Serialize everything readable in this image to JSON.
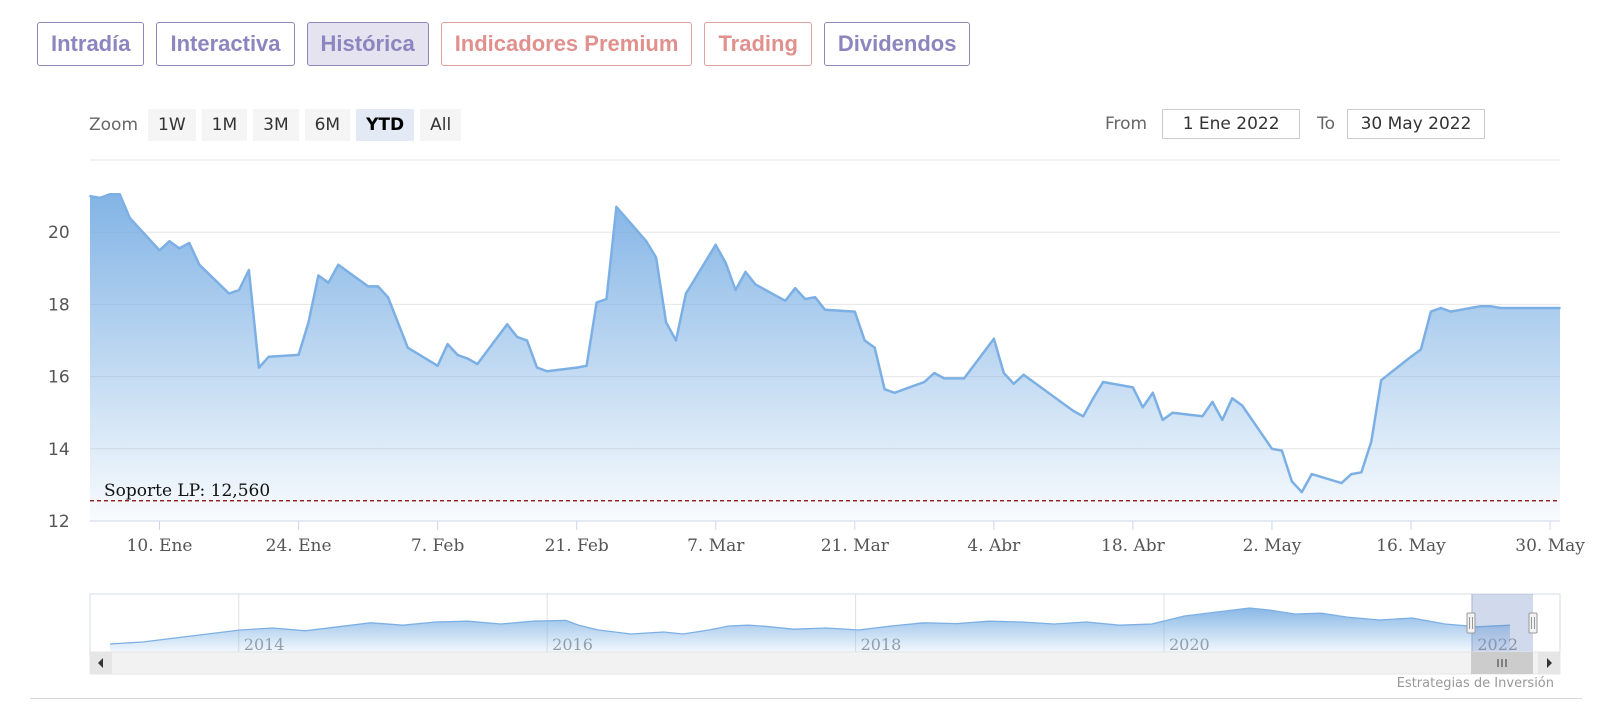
{
  "tabs": [
    {
      "label": "Intradía",
      "color": "#8c85bf"
    },
    {
      "label": "Interactiva",
      "color": "#8c85bf"
    },
    {
      "label": "Histórica",
      "color": "#8c85bf",
      "active": true
    },
    {
      "label": "Indicadores Premium",
      "color": "#e0918e"
    },
    {
      "label": "Trading",
      "color": "#e0918e"
    },
    {
      "label": "Dividendos",
      "color": "#8c85bf"
    }
  ],
  "zoom": {
    "label": "Zoom",
    "buttons": [
      "1W",
      "1M",
      "3M",
      "6M",
      "YTD",
      "All"
    ],
    "selected": "YTD"
  },
  "range": {
    "from_label": "From",
    "from_value": "1 Ene 2022",
    "to_label": "To",
    "to_value": "30 May 2022"
  },
  "credit": "Estrategias de Inversión",
  "chart_data": {
    "type": "area",
    "ylim": [
      12,
      22
    ],
    "yticks": [
      12,
      14,
      16,
      18,
      20
    ],
    "x_range": [
      "2022-01-03",
      "2022-05-31"
    ],
    "xticks": [
      {
        "date": "2022-01-10",
        "label": "10. Ene"
      },
      {
        "date": "2022-01-24",
        "label": "24. Ene"
      },
      {
        "date": "2022-02-07",
        "label": "7. Feb"
      },
      {
        "date": "2022-02-21",
        "label": "21. Feb"
      },
      {
        "date": "2022-03-07",
        "label": "7. Mar"
      },
      {
        "date": "2022-03-21",
        "label": "21. Mar"
      },
      {
        "date": "2022-04-04",
        "label": "4. Abr"
      },
      {
        "date": "2022-04-18",
        "label": "18. Abr"
      },
      {
        "date": "2022-05-02",
        "label": "2. May"
      },
      {
        "date": "2022-05-16",
        "label": "16. May"
      },
      {
        "date": "2022-05-30",
        "label": "30. May"
      }
    ],
    "series": [
      {
        "points": [
          [
            "2022-01-03",
            21.0
          ],
          [
            "2022-01-04",
            20.95
          ],
          [
            "2022-01-05",
            21.05
          ],
          [
            "2022-01-06",
            21.05
          ],
          [
            "2022-01-07",
            20.4
          ],
          [
            "2022-01-10",
            19.5
          ],
          [
            "2022-01-11",
            19.75
          ],
          [
            "2022-01-12",
            19.55
          ],
          [
            "2022-01-13",
            19.7
          ],
          [
            "2022-01-14",
            19.1
          ],
          [
            "2022-01-17",
            18.3
          ],
          [
            "2022-01-18",
            18.4
          ],
          [
            "2022-01-19",
            18.95
          ],
          [
            "2022-01-20",
            16.25
          ],
          [
            "2022-01-21",
            16.55
          ],
          [
            "2022-01-24",
            16.6
          ],
          [
            "2022-01-25",
            17.5
          ],
          [
            "2022-01-26",
            18.8
          ],
          [
            "2022-01-27",
            18.6
          ],
          [
            "2022-01-28",
            19.1
          ],
          [
            "2022-01-31",
            18.5
          ],
          [
            "2022-02-01",
            18.5
          ],
          [
            "2022-02-02",
            18.2
          ],
          [
            "2022-02-03",
            17.5
          ],
          [
            "2022-02-04",
            16.8
          ],
          [
            "2022-02-07",
            16.3
          ],
          [
            "2022-02-08",
            16.9
          ],
          [
            "2022-02-09",
            16.6
          ],
          [
            "2022-02-10",
            16.5
          ],
          [
            "2022-02-11",
            16.35
          ],
          [
            "2022-02-14",
            17.45
          ],
          [
            "2022-02-15",
            17.1
          ],
          [
            "2022-02-16",
            17.0
          ],
          [
            "2022-02-17",
            16.25
          ],
          [
            "2022-02-18",
            16.15
          ],
          [
            "2022-02-21",
            16.25
          ],
          [
            "2022-02-22",
            16.3
          ],
          [
            "2022-02-23",
            18.05
          ],
          [
            "2022-02-24",
            18.15
          ],
          [
            "2022-02-25",
            20.7
          ],
          [
            "2022-02-28",
            19.75
          ],
          [
            "2022-03-01",
            19.3
          ],
          [
            "2022-03-02",
            17.5
          ],
          [
            "2022-03-03",
            17.0
          ],
          [
            "2022-03-04",
            18.3
          ],
          [
            "2022-03-07",
            19.65
          ],
          [
            "2022-03-08",
            19.15
          ],
          [
            "2022-03-09",
            18.4
          ],
          [
            "2022-03-10",
            18.9
          ],
          [
            "2022-03-11",
            18.55
          ],
          [
            "2022-03-14",
            18.1
          ],
          [
            "2022-03-15",
            18.45
          ],
          [
            "2022-03-16",
            18.15
          ],
          [
            "2022-03-17",
            18.2
          ],
          [
            "2022-03-18",
            17.85
          ],
          [
            "2022-03-21",
            17.8
          ],
          [
            "2022-03-22",
            17.0
          ],
          [
            "2022-03-23",
            16.8
          ],
          [
            "2022-03-24",
            15.65
          ],
          [
            "2022-03-25",
            15.55
          ],
          [
            "2022-03-28",
            15.85
          ],
          [
            "2022-03-29",
            16.1
          ],
          [
            "2022-03-30",
            15.95
          ],
          [
            "2022-03-31",
            15.95
          ],
          [
            "2022-04-01",
            15.95
          ],
          [
            "2022-04-04",
            17.05
          ],
          [
            "2022-04-05",
            16.1
          ],
          [
            "2022-04-06",
            15.8
          ],
          [
            "2022-04-07",
            16.05
          ],
          [
            "2022-04-08",
            15.85
          ],
          [
            "2022-04-11",
            15.25
          ],
          [
            "2022-04-12",
            15.05
          ],
          [
            "2022-04-13",
            14.9
          ],
          [
            "2022-04-14",
            15.4
          ],
          [
            "2022-04-15",
            15.85
          ],
          [
            "2022-04-18",
            15.7
          ],
          [
            "2022-04-19",
            15.15
          ],
          [
            "2022-04-20",
            15.55
          ],
          [
            "2022-04-21",
            14.8
          ],
          [
            "2022-04-22",
            15.0
          ],
          [
            "2022-04-25",
            14.9
          ],
          [
            "2022-04-26",
            15.3
          ],
          [
            "2022-04-27",
            14.8
          ],
          [
            "2022-04-28",
            15.4
          ],
          [
            "2022-04-29",
            15.2
          ],
          [
            "2022-05-02",
            14.0
          ],
          [
            "2022-05-03",
            13.95
          ],
          [
            "2022-05-04",
            13.1
          ],
          [
            "2022-05-05",
            12.8
          ],
          [
            "2022-05-06",
            13.3
          ],
          [
            "2022-05-09",
            13.05
          ],
          [
            "2022-05-10",
            13.3
          ],
          [
            "2022-05-11",
            13.35
          ],
          [
            "2022-05-12",
            14.2
          ],
          [
            "2022-05-13",
            15.9
          ],
          [
            "2022-05-16",
            16.55
          ],
          [
            "2022-05-17",
            16.75
          ],
          [
            "2022-05-18",
            17.8
          ],
          [
            "2022-05-19",
            17.9
          ],
          [
            "2022-05-20",
            17.8
          ],
          [
            "2022-05-23",
            17.95
          ],
          [
            "2022-05-24",
            17.95
          ],
          [
            "2022-05-25",
            17.9
          ],
          [
            "2022-05-31",
            17.9
          ]
        ]
      }
    ],
    "annotations": [
      {
        "label": "Soporte LP: 12,560",
        "value": 12.56,
        "style": "dashed",
        "color": "#8b0000"
      }
    ],
    "color": "#7cb0e4",
    "grid": true,
    "navigator": {
      "labels": [
        "2014",
        "2016",
        "2018",
        "2020",
        "2022"
      ],
      "years": [
        2014,
        2016,
        2018,
        2020,
        2022
      ]
    }
  }
}
